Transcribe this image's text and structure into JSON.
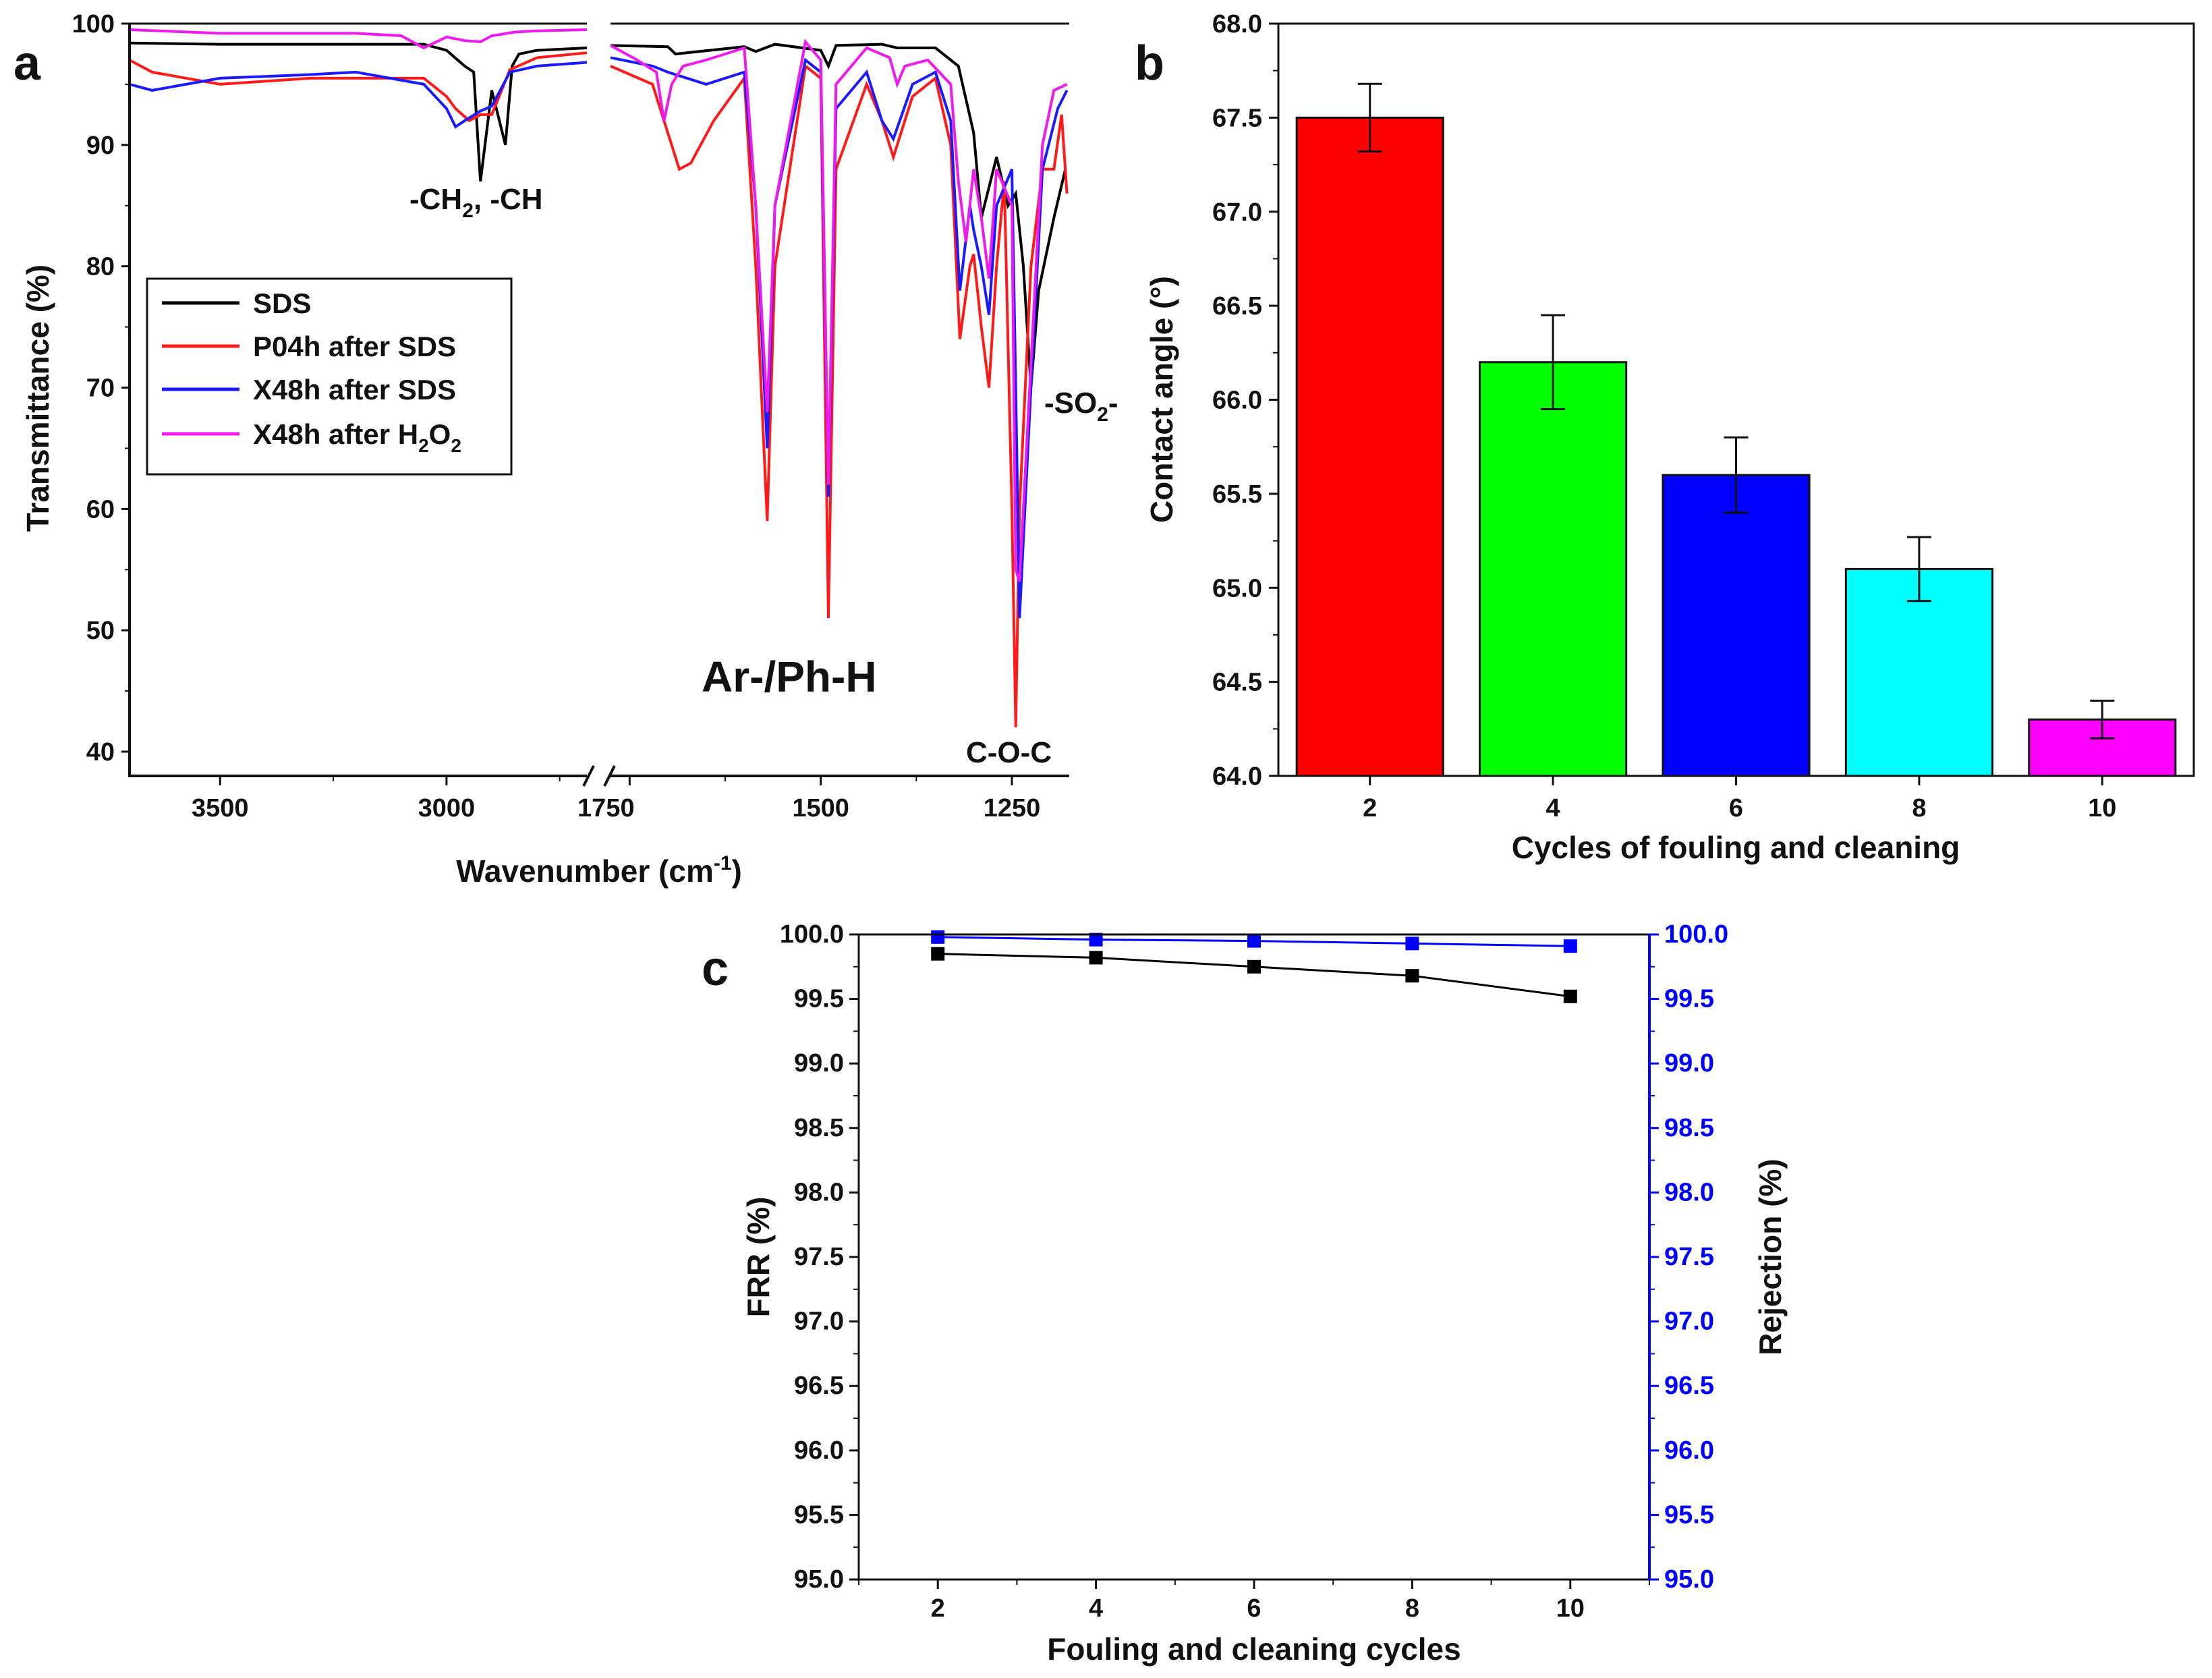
{
  "chart_data": [
    {
      "panel_label": "a",
      "type": "line",
      "xlabel": "Wavenumber (cm",
      "xlabel_sup": "-1",
      "xlabel_end": ")",
      "ylabel": "Transmittance (%)",
      "ylim": [
        38,
        100
      ],
      "x_segments": [
        [
          3700,
          2690
        ],
        [
          1775,
          1175
        ]
      ],
      "x_ticks_left": [
        "3500",
        "3000",
        "1750"
      ],
      "x_ticks_right": [
        "1500",
        "1250"
      ],
      "y_ticks": [
        "40",
        "50",
        "60",
        "70",
        "80",
        "90",
        "100"
      ],
      "annotations": {
        "ch_main": "-CH",
        "ch_sub": "2",
        "ch_tail": ", -CH",
        "aromatic": "Ar-/Ph-H",
        "coc": "C-O-C",
        "so2_main": "-SO",
        "so2_sub": "2",
        "so2_tail": "-"
      },
      "series": [
        {
          "name": "SDS",
          "color": "#000000",
          "legend": "SDS",
          "x": [
            3700,
            3500,
            3200,
            3050,
            3000,
            2960,
            2940,
            2925,
            2900,
            2870,
            2855,
            2840,
            2800,
            2690,
            1775,
            1700,
            1690,
            1600,
            1585,
            1560,
            1500,
            1490,
            1480,
            1420,
            1400,
            1350,
            1320,
            1300,
            1290,
            1270,
            1255,
            1245,
            1235,
            1225,
            1215,
            1195,
            1180
          ],
          "y": [
            98.4,
            98.3,
            98.3,
            98.3,
            97.8,
            96.5,
            96,
            87,
            94.5,
            90,
            96.5,
            97.5,
            97.8,
            98,
            98.2,
            98.1,
            97.5,
            98.1,
            97.7,
            98.3,
            97.8,
            96.5,
            98.2,
            98.3,
            98,
            98,
            96.5,
            91,
            84,
            89,
            85,
            86,
            80,
            70,
            78,
            84,
            88
          ]
        },
        {
          "name": "P04h after SDS",
          "color": "#ff1a1a",
          "legend": "P04h after SDS",
          "x": [
            3700,
            3650,
            3500,
            3300,
            3200,
            3050,
            3000,
            2980,
            2950,
            2925,
            2900,
            2860,
            2800,
            2690,
            1775,
            1720,
            1705,
            1685,
            1670,
            1640,
            1600,
            1585,
            1570,
            1560,
            1520,
            1500,
            1490,
            1480,
            1440,
            1420,
            1405,
            1380,
            1350,
            1330,
            1318,
            1305,
            1300,
            1290,
            1280,
            1270,
            1260,
            1250,
            1245,
            1240,
            1225,
            1210,
            1195,
            1185,
            1178
          ],
          "y": [
            97,
            96,
            95,
            95.5,
            95.5,
            95.5,
            94,
            93,
            92,
            92.5,
            92.5,
            96.2,
            97.2,
            97.6,
            96.5,
            95,
            92,
            88,
            88.5,
            92,
            95.5,
            80,
            59,
            80,
            96.5,
            95.5,
            51,
            88,
            95,
            92,
            89,
            94,
            95.5,
            90,
            74,
            80,
            81,
            75,
            70,
            80,
            87,
            60,
            42,
            60,
            80,
            88,
            88,
            92.5,
            86
          ]
        },
        {
          "name": "X48h after SDS",
          "color": "#1a1aff",
          "legend": "X48h after SDS",
          "x": [
            3700,
            3650,
            3500,
            3300,
            3200,
            3050,
            3000,
            2980,
            2960,
            2925,
            2900,
            2860,
            2800,
            2690,
            1775,
            1720,
            1700,
            1650,
            1600,
            1585,
            1570,
            1560,
            1520,
            1500,
            1490,
            1480,
            1440,
            1420,
            1405,
            1380,
            1350,
            1330,
            1318,
            1305,
            1300,
            1290,
            1280,
            1270,
            1250,
            1245,
            1240,
            1225,
            1210,
            1190,
            1178
          ],
          "y": [
            95,
            94.5,
            95.5,
            95.8,
            96,
            95,
            93,
            91.5,
            92,
            92.8,
            93.2,
            96,
            96.5,
            96.8,
            97.2,
            96.5,
            96,
            95,
            96,
            85,
            65,
            85,
            97,
            96,
            61,
            93,
            96,
            92,
            90.5,
            95,
            96,
            92,
            78,
            85,
            83,
            80,
            76,
            85,
            88,
            70,
            51,
            70,
            88,
            93,
            94.5
          ]
        },
        {
          "name": "X48h after H2O2",
          "color": "#ee1aee",
          "legend_main": "X48h after H",
          "legend_sub1": "2",
          "legend_mid": "O",
          "legend_sub2": "2",
          "x": [
            3700,
            3500,
            3200,
            3100,
            3050,
            3000,
            2960,
            2925,
            2900,
            2850,
            2800,
            2690,
            1775,
            1740,
            1715,
            1705,
            1695,
            1680,
            1650,
            1600,
            1585,
            1570,
            1560,
            1520,
            1500,
            1490,
            1480,
            1440,
            1410,
            1400,
            1390,
            1360,
            1330,
            1320,
            1310,
            1300,
            1290,
            1280,
            1270,
            1250,
            1245,
            1240,
            1225,
            1210,
            1195,
            1178
          ],
          "y": [
            99.5,
            99.2,
            99.2,
            99,
            98,
            98.9,
            98.6,
            98.5,
            99,
            99.3,
            99.4,
            99.5,
            98.2,
            97,
            96,
            92,
            95,
            96.5,
            97,
            98,
            85,
            68,
            85,
            98.5,
            97,
            62,
            95,
            98,
            97.2,
            95,
            96.5,
            97,
            95,
            87,
            82,
            88,
            84,
            79,
            88,
            85,
            55,
            54,
            72,
            90,
            94.5,
            95
          ]
        }
      ]
    },
    {
      "panel_label": "b",
      "type": "bar",
      "categories": [
        "2",
        "4",
        "6",
        "8",
        "10"
      ],
      "values": [
        67.5,
        66.2,
        65.6,
        65.1,
        64.3
      ],
      "errors": [
        0.18,
        0.25,
        0.2,
        0.17,
        0.1
      ],
      "colors": [
        "#ff0000",
        "#00ff00",
        "#0000ff",
        "#00ffff",
        "#ff00ff"
      ],
      "xlabel": "Cycles of fouling and cleaning",
      "ylabel": "Contact angle (°)",
      "ylim": [
        64.0,
        68.0
      ],
      "y_ticks": [
        "64.0",
        "64.5",
        "65.0",
        "65.5",
        "66.0",
        "66.5",
        "67.0",
        "67.5",
        "68.0"
      ]
    },
    {
      "panel_label": "c",
      "type": "line",
      "xlabel": "Fouling and cleaning cycles",
      "ylabel_left": "FRR (%)",
      "ylabel_right": "Rejection (%)",
      "ylim": [
        95.0,
        100.0
      ],
      "xlim": [
        1,
        11
      ],
      "x_ticks": [
        "2",
        "4",
        "6",
        "8",
        "10"
      ],
      "y_ticks": [
        "95.0",
        "95.5",
        "96.0",
        "96.5",
        "97.0",
        "97.5",
        "98.0",
        "98.5",
        "99.0",
        "99.5",
        "100.0"
      ],
      "series": [
        {
          "name": "FRR",
          "axis": "left",
          "color": "#000000",
          "x": [
            2,
            4,
            6,
            8,
            10
          ],
          "y": [
            99.85,
            99.82,
            99.75,
            99.68,
            99.52
          ]
        },
        {
          "name": "Rejection",
          "axis": "right",
          "color": "#0000ff",
          "x": [
            2,
            4,
            6,
            8,
            10
          ],
          "y": [
            99.98,
            99.96,
            99.95,
            99.93,
            99.91
          ]
        }
      ]
    }
  ]
}
